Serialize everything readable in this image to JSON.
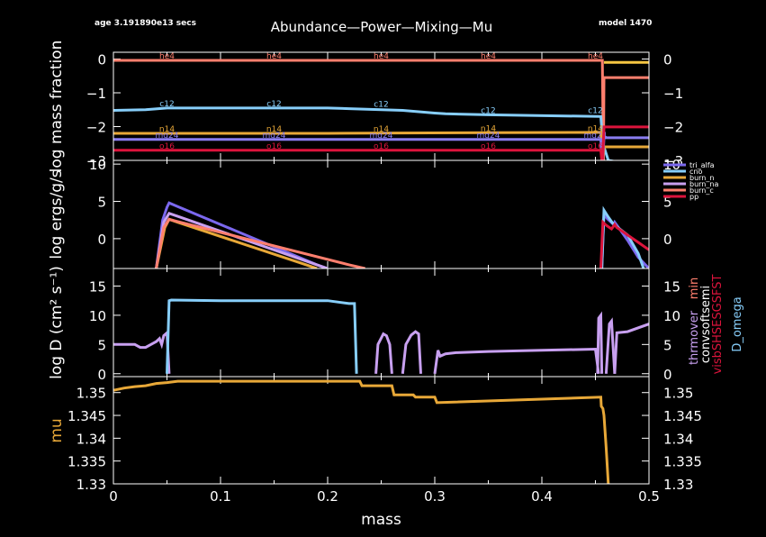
{
  "header": {
    "age": "age 3.191890e13 secs",
    "title": "Abundance—Power—Mixing—Mu",
    "model": "model 1470"
  },
  "chart_data": [
    {
      "id": "abundance",
      "type": "line",
      "ylabel": "log mass fraction",
      "xlim": [
        0,
        0.5
      ],
      "ylim": [
        -3,
        0.2
      ],
      "yticks": [
        0,
        -1,
        -2,
        -3
      ],
      "ytick_labels": [
        "0",
        "−1",
        "−2",
        "−3"
      ],
      "series": [
        {
          "name": "he4",
          "color": "#ff7f6e",
          "label_x": [
            0.05,
            0.15,
            0.25,
            0.35,
            0.45
          ],
          "x": [
            0,
            0.455,
            0.4565,
            0.4575,
            0.458,
            0.5
          ],
          "y": [
            -0.04,
            -0.04,
            -0.04,
            -3.2,
            -0.55,
            -0.55
          ]
        },
        {
          "name": "c12",
          "color": "#87cefa",
          "label_x": [
            0.05,
            0.15,
            0.25,
            0.35,
            0.45
          ],
          "x": [
            0,
            0.03,
            0.05,
            0.08,
            0.2,
            0.22,
            0.27,
            0.3,
            0.31,
            0.35,
            0.455,
            0.457,
            0.462,
            0.5
          ],
          "y": [
            -1.52,
            -1.5,
            -1.45,
            -1.45,
            -1.45,
            -1.47,
            -1.52,
            -1.6,
            -1.62,
            -1.65,
            -1.7,
            -2.5,
            -3.0,
            -3.2
          ]
        },
        {
          "name": "n14",
          "color": "#e8a838",
          "label_x": [
            0.05,
            0.15,
            0.25,
            0.35,
            0.45
          ],
          "x": [
            0,
            0.05,
            0.2,
            0.27,
            0.35,
            0.455,
            0.4565,
            0.458,
            0.5
          ],
          "y": [
            -2.2,
            -2.2,
            -2.2,
            -2.19,
            -2.18,
            -2.17,
            -3.2,
            -2.6,
            -2.6
          ]
        },
        {
          "name": "mg24",
          "color": "#8a7df0",
          "label_x": [
            0.05,
            0.15,
            0.25,
            0.35,
            0.45
          ],
          "x": [
            0,
            0.455,
            0.4565,
            0.458,
            0.5
          ],
          "y": [
            -2.38,
            -2.38,
            -3.2,
            -2.33,
            -2.33
          ]
        },
        {
          "name": "o16",
          "color": "#dc143c",
          "label_x": [
            0.05,
            0.15,
            0.25,
            0.35,
            0.45
          ],
          "x": [
            0,
            0.455,
            0.4565,
            0.458,
            0.5
          ],
          "y": [
            -2.7,
            -2.7,
            -3.2,
            -2.01,
            -2.01
          ]
        },
        {
          "name": "",
          "color": "#f5c542",
          "x": [
            0.458,
            0.5
          ],
          "y": [
            -0.1,
            -0.1
          ]
        }
      ]
    },
    {
      "id": "power",
      "type": "line",
      "ylabel": "log ergs/g/s",
      "xlim": [
        0,
        0.5
      ],
      "ylim": [
        -4,
        10.5
      ],
      "yticks": [
        10,
        5,
        0
      ],
      "ytick_labels": [
        "10",
        "5",
        "0"
      ],
      "legend": [
        "tri_alfa",
        "cno",
        "burn_n",
        "burn_na",
        "burn_c",
        "pp"
      ],
      "series": [
        {
          "name": "tri_alfa",
          "color": "#7b68ee",
          "x": [
            0.04,
            0.046,
            0.05,
            0.052,
            0.06,
            0.19,
            0.2
          ],
          "y": [
            -4,
            2.5,
            4.2,
            4.8,
            4.3,
            -3.5,
            -4
          ],
          "x2": [
            0.456,
            0.458,
            0.461,
            0.467,
            0.468,
            0.47,
            0.475,
            0.48,
            0.49,
            0.5
          ],
          "y2": [
            -4,
            3.3,
            2.7,
            1.9,
            2.2,
            1.8,
            0.8,
            -0.2,
            -2.5,
            -4
          ]
        },
        {
          "name": "cno",
          "color": "#87cefa",
          "x": [
            0.456,
            0.458,
            0.462,
            0.466,
            0.47,
            0.48,
            0.49,
            0.495
          ],
          "y": [
            -4,
            3.8,
            2.9,
            2.1,
            1.6,
            0.5,
            -2,
            -4
          ]
        },
        {
          "name": "burn_n",
          "color": "#e8a838",
          "x": [
            0.04,
            0.048,
            0.052,
            0.06,
            0.18,
            0.19
          ],
          "y": [
            -4,
            1.5,
            2.6,
            2.2,
            -3.5,
            -4
          ]
        },
        {
          "name": "burn_na",
          "color": "#c8a0f0",
          "x": [
            0.04,
            0.047,
            0.052,
            0.06,
            0.19,
            0.2
          ],
          "y": [
            -4,
            2.2,
            3.4,
            3,
            -3.5,
            -4
          ]
        },
        {
          "name": "burn_c",
          "color": "#ff7f6e",
          "x": [
            0.04,
            0.047,
            0.052,
            0.06,
            0.22,
            0.235
          ],
          "y": [
            -4,
            1.5,
            2.6,
            2.3,
            -3.5,
            -4
          ]
        },
        {
          "name": "pp",
          "color": "#dc143c",
          "x": [
            0.455,
            0.457,
            0.46,
            0.465,
            0.468,
            0.47,
            0.48,
            0.49,
            0.5
          ],
          "y": [
            -4,
            2.2,
            1.8,
            1.3,
            1.9,
            1.5,
            0.5,
            -0.5,
            -1.5
          ]
        }
      ]
    },
    {
      "id": "mixing",
      "type": "line",
      "ylabel": "log D (cm² s⁻¹)",
      "xlim": [
        0,
        0.5
      ],
      "ylim": [
        -0.5,
        18
      ],
      "yticks": [
        15,
        10,
        5,
        0
      ],
      "ytick_labels": [
        "15",
        "10",
        "5",
        "0"
      ],
      "legend": [
        "thrmover",
        "min",
        "convsoftsemi",
        "visbSHSESGSFST",
        "D_omega"
      ],
      "series": [
        {
          "name": "thrmover",
          "color": "#c8a0f0",
          "x": [
            0,
            0.01,
            0.02,
            0.025,
            0.03,
            0.035,
            0.04,
            0.043,
            0.045,
            0.047,
            0.05,
            0.052
          ],
          "y": [
            5,
            5,
            5,
            4.5,
            4.5,
            5,
            5.5,
            6,
            5,
            6.5,
            7,
            0
          ]
        },
        {
          "name": "",
          "color": "#c8a0f0",
          "x": [
            0.245,
            0.247,
            0.252,
            0.255,
            0.258,
            0.26
          ],
          "y": [
            0,
            5,
            6.8,
            6.5,
            5,
            0
          ]
        },
        {
          "name": "",
          "color": "#c8a0f0",
          "x": [
            0.27,
            0.273,
            0.278,
            0.282,
            0.285,
            0.287
          ],
          "y": [
            0,
            5,
            6.6,
            7.2,
            6.8,
            0
          ]
        },
        {
          "name": "",
          "color": "#c8a0f0",
          "x": [
            0.3,
            0.303,
            0.305,
            0.31,
            0.32,
            0.35,
            0.4,
            0.45,
            0.453
          ],
          "y": [
            0,
            4,
            3,
            3.4,
            3.6,
            3.8,
            4,
            4.2,
            0
          ]
        },
        {
          "name": "",
          "color": "#c8a0f0",
          "x": [
            0.452,
            0.453,
            0.455,
            0.456
          ],
          "y": [
            0,
            9.5,
            10,
            0
          ]
        },
        {
          "name": "",
          "color": "#c8a0f0",
          "x": [
            0.46,
            0.463,
            0.465,
            0.468
          ],
          "y": [
            0,
            8.5,
            9,
            0
          ]
        },
        {
          "name": "",
          "color": "#c8a0f0",
          "x": [
            0.468,
            0.47,
            0.48,
            0.5
          ],
          "y": [
            0,
            7,
            7.2,
            8.5
          ]
        },
        {
          "name": "D_omega",
          "color": "#87cefa",
          "x": [
            0.05,
            0.052,
            0.054,
            0.1,
            0.2,
            0.22,
            0.225,
            0.227
          ],
          "y": [
            0,
            12.5,
            12.6,
            12.5,
            12.5,
            12.0,
            12.0,
            0
          ]
        }
      ]
    },
    {
      "id": "mu",
      "type": "line",
      "ylabel": "mu",
      "xlabel": "mass",
      "xlim": [
        0,
        0.5
      ],
      "ylim": [
        1.33,
        1.3535
      ],
      "yticks": [
        1.35,
        1.345,
        1.34,
        1.335,
        1.33
      ],
      "ytick_labels": [
        "1.35",
        "1.345",
        "1.34",
        "1.335",
        "1.33"
      ],
      "xticks": [
        0,
        0.1,
        0.2,
        0.3,
        0.4,
        0.5
      ],
      "xtick_labels": [
        "0",
        "0.1",
        "0.2",
        "0.3",
        "0.4",
        "0.5"
      ],
      "series": [
        {
          "name": "",
          "color": "#e8a838",
          "x": [
            0,
            0.01,
            0.02,
            0.03,
            0.04,
            0.05,
            0.06,
            0.1,
            0.2,
            0.23,
            0.232,
            0.26,
            0.262,
            0.28,
            0.282,
            0.3,
            0.302,
            0.455,
            0.4555,
            0.457,
            0.458,
            0.46,
            0.462
          ],
          "y": [
            1.3505,
            1.351,
            1.3513,
            1.3515,
            1.352,
            1.3522,
            1.3525,
            1.3525,
            1.3525,
            1.3525,
            1.3515,
            1.3515,
            1.3495,
            1.3495,
            1.349,
            1.349,
            1.3478,
            1.349,
            1.347,
            1.3465,
            1.345,
            1.338,
            1.33
          ]
        }
      ]
    }
  ]
}
